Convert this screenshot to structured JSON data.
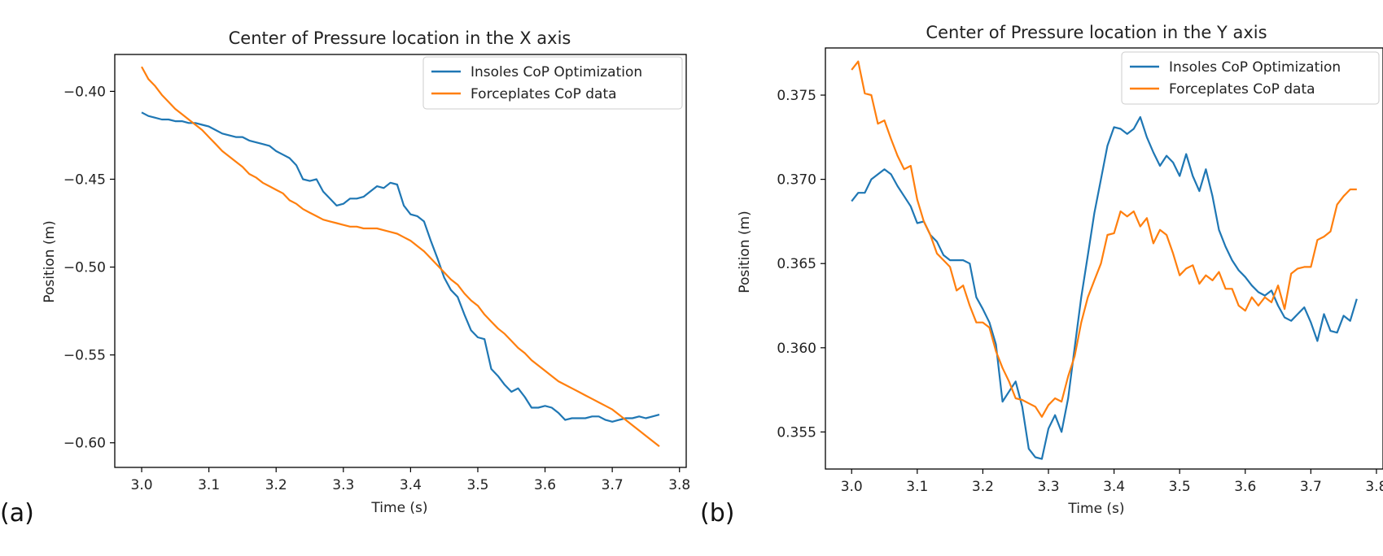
{
  "colors": {
    "insoles": "#1f77b4",
    "forceplates": "#ff7f0e"
  },
  "chart_data": [
    {
      "panel_label": "(a)",
      "type": "line",
      "title": "Center of Pressure location in the X axis",
      "xlabel": "Time (s)",
      "ylabel": "Position (m)",
      "xlim": [
        2.96,
        3.81
      ],
      "ylim": [
        -0.614,
        -0.379
      ],
      "xticks": [
        3.0,
        3.1,
        3.2,
        3.3,
        3.4,
        3.5,
        3.6,
        3.7,
        3.8
      ],
      "xtick_labels": [
        "3.0",
        "3.1",
        "3.2",
        "3.3",
        "3.4",
        "3.5",
        "3.6",
        "3.7",
        "3.8"
      ],
      "yticks": [
        -0.4,
        -0.45,
        -0.5,
        -0.55,
        -0.6
      ],
      "ytick_labels": [
        "−0.40",
        "−0.45",
        "−0.50",
        "−0.55",
        "−0.60"
      ],
      "legend": {
        "placement": "top-right",
        "entries": [
          "Insoles CoP Optimization",
          "Forceplates CoP data"
        ]
      },
      "grid": false,
      "series": [
        {
          "name": "Insoles CoP Optimization",
          "x": [
            3.0,
            3.01,
            3.02,
            3.03,
            3.04,
            3.05,
            3.06,
            3.07,
            3.08,
            3.09,
            3.1,
            3.11,
            3.12,
            3.13,
            3.14,
            3.15,
            3.16,
            3.17,
            3.18,
            3.19,
            3.2,
            3.21,
            3.22,
            3.23,
            3.24,
            3.25,
            3.26,
            3.27,
            3.28,
            3.29,
            3.3,
            3.31,
            3.32,
            3.33,
            3.34,
            3.35,
            3.36,
            3.37,
            3.38,
            3.39,
            3.4,
            3.41,
            3.42,
            3.43,
            3.44,
            3.45,
            3.46,
            3.47,
            3.48,
            3.49,
            3.5,
            3.51,
            3.52,
            3.53,
            3.54,
            3.55,
            3.56,
            3.57,
            3.58,
            3.59,
            3.6,
            3.61,
            3.62,
            3.63,
            3.64,
            3.65,
            3.66,
            3.67,
            3.68,
            3.69,
            3.7,
            3.71,
            3.72,
            3.73,
            3.74,
            3.75,
            3.76,
            3.77
          ],
          "y": [
            -0.412,
            -0.414,
            -0.415,
            -0.416,
            -0.416,
            -0.417,
            -0.417,
            -0.418,
            -0.418,
            -0.419,
            -0.42,
            -0.422,
            -0.424,
            -0.425,
            -0.426,
            -0.426,
            -0.428,
            -0.429,
            -0.43,
            -0.431,
            -0.434,
            -0.436,
            -0.438,
            -0.442,
            -0.45,
            -0.451,
            -0.45,
            -0.457,
            -0.461,
            -0.465,
            -0.464,
            -0.461,
            -0.461,
            -0.46,
            -0.457,
            -0.454,
            -0.455,
            -0.452,
            -0.453,
            -0.465,
            -0.47,
            -0.471,
            -0.474,
            -0.485,
            -0.495,
            -0.506,
            -0.513,
            -0.517,
            -0.527,
            -0.536,
            -0.54,
            -0.541,
            -0.558,
            -0.562,
            -0.567,
            -0.571,
            -0.569,
            -0.574,
            -0.58,
            -0.58,
            -0.579,
            -0.58,
            -0.583,
            -0.587,
            -0.586,
            -0.586,
            -0.586,
            -0.585,
            -0.585,
            -0.587,
            -0.588,
            -0.587,
            -0.586,
            -0.586,
            -0.585,
            -0.586,
            -0.585,
            -0.584
          ]
        },
        {
          "name": "Forceplates CoP data",
          "x": [
            3.0,
            3.01,
            3.02,
            3.03,
            3.04,
            3.05,
            3.06,
            3.07,
            3.08,
            3.09,
            3.1,
            3.11,
            3.12,
            3.13,
            3.14,
            3.15,
            3.16,
            3.17,
            3.18,
            3.19,
            3.2,
            3.21,
            3.22,
            3.23,
            3.24,
            3.25,
            3.26,
            3.27,
            3.28,
            3.29,
            3.3,
            3.31,
            3.32,
            3.33,
            3.34,
            3.35,
            3.36,
            3.37,
            3.38,
            3.39,
            3.4,
            3.41,
            3.42,
            3.43,
            3.44,
            3.45,
            3.46,
            3.47,
            3.48,
            3.49,
            3.5,
            3.51,
            3.52,
            3.53,
            3.54,
            3.55,
            3.56,
            3.57,
            3.58,
            3.59,
            3.6,
            3.61,
            3.62,
            3.63,
            3.64,
            3.65,
            3.66,
            3.67,
            3.68,
            3.69,
            3.7,
            3.71,
            3.72,
            3.73,
            3.74,
            3.75,
            3.76,
            3.77
          ],
          "y": [
            -0.386,
            -0.393,
            -0.397,
            -0.402,
            -0.406,
            -0.41,
            -0.413,
            -0.416,
            -0.419,
            -0.422,
            -0.426,
            -0.43,
            -0.434,
            -0.437,
            -0.44,
            -0.443,
            -0.447,
            -0.449,
            -0.452,
            -0.454,
            -0.456,
            -0.458,
            -0.462,
            -0.464,
            -0.467,
            -0.469,
            -0.471,
            -0.473,
            -0.474,
            -0.475,
            -0.476,
            -0.477,
            -0.477,
            -0.478,
            -0.478,
            -0.478,
            -0.479,
            -0.48,
            -0.481,
            -0.483,
            -0.485,
            -0.488,
            -0.491,
            -0.495,
            -0.499,
            -0.503,
            -0.507,
            -0.51,
            -0.515,
            -0.519,
            -0.522,
            -0.527,
            -0.531,
            -0.535,
            -0.538,
            -0.542,
            -0.546,
            -0.549,
            -0.553,
            -0.556,
            -0.559,
            -0.562,
            -0.565,
            -0.567,
            -0.569,
            -0.571,
            -0.573,
            -0.575,
            -0.577,
            -0.579,
            -0.581,
            -0.584,
            -0.587,
            -0.59,
            -0.593,
            -0.596,
            -0.599,
            -0.602
          ]
        }
      ]
    },
    {
      "panel_label": "(b)",
      "type": "line",
      "title": "Center of Pressure location in the Y axis",
      "xlabel": "Time (s)",
      "ylabel": "Position (m)",
      "xlim": [
        2.96,
        3.81
      ],
      "ylim": [
        0.3528,
        0.3778
      ],
      "xticks": [
        3.0,
        3.1,
        3.2,
        3.3,
        3.4,
        3.5,
        3.6,
        3.7,
        3.8
      ],
      "xtick_labels": [
        "3.0",
        "3.1",
        "3.2",
        "3.3",
        "3.4",
        "3.5",
        "3.6",
        "3.7",
        "3.8"
      ],
      "yticks": [
        0.355,
        0.36,
        0.365,
        0.37,
        0.375
      ],
      "ytick_labels": [
        "0.355",
        "0.360",
        "0.365",
        "0.370",
        "0.375"
      ],
      "legend": {
        "placement": "top-right",
        "entries": [
          "Insoles CoP Optimization",
          "Forceplates CoP data"
        ]
      },
      "grid": false,
      "series": [
        {
          "name": "Insoles CoP Optimization",
          "x": [
            3.0,
            3.01,
            3.02,
            3.03,
            3.04,
            3.05,
            3.06,
            3.07,
            3.08,
            3.09,
            3.1,
            3.11,
            3.12,
            3.13,
            3.14,
            3.15,
            3.16,
            3.17,
            3.18,
            3.19,
            3.2,
            3.21,
            3.22,
            3.23,
            3.24,
            3.25,
            3.26,
            3.27,
            3.28,
            3.29,
            3.3,
            3.31,
            3.32,
            3.33,
            3.34,
            3.35,
            3.36,
            3.37,
            3.38,
            3.39,
            3.4,
            3.41,
            3.42,
            3.43,
            3.44,
            3.45,
            3.46,
            3.47,
            3.48,
            3.49,
            3.5,
            3.51,
            3.52,
            3.53,
            3.54,
            3.55,
            3.56,
            3.57,
            3.58,
            3.59,
            3.6,
            3.61,
            3.62,
            3.63,
            3.64,
            3.65,
            3.66,
            3.67,
            3.68,
            3.69,
            3.7,
            3.71,
            3.72,
            3.73,
            3.74,
            3.75,
            3.76,
            3.77
          ],
          "y": [
            0.3687,
            0.3692,
            0.3692,
            0.37,
            0.3703,
            0.3706,
            0.3703,
            0.3696,
            0.369,
            0.3684,
            0.3674,
            0.3675,
            0.3667,
            0.3663,
            0.3655,
            0.3652,
            0.3652,
            0.3652,
            0.365,
            0.363,
            0.3623,
            0.3615,
            0.3602,
            0.3568,
            0.3574,
            0.358,
            0.3565,
            0.354,
            0.3535,
            0.3534,
            0.3552,
            0.356,
            0.355,
            0.357,
            0.36,
            0.363,
            0.3655,
            0.368,
            0.37,
            0.372,
            0.3731,
            0.373,
            0.3727,
            0.373,
            0.3737,
            0.3725,
            0.3716,
            0.3708,
            0.3714,
            0.371,
            0.3702,
            0.3715,
            0.3702,
            0.3693,
            0.3706,
            0.369,
            0.367,
            0.366,
            0.3652,
            0.3646,
            0.3642,
            0.3637,
            0.3633,
            0.3631,
            0.3634,
            0.3625,
            0.3618,
            0.3616,
            0.362,
            0.3624,
            0.3615,
            0.3604,
            0.362,
            0.361,
            0.3609,
            0.3619,
            0.3616,
            0.3629
          ]
        },
        {
          "name": "Forceplates CoP data",
          "x": [
            3.0,
            3.01,
            3.02,
            3.03,
            3.04,
            3.05,
            3.06,
            3.07,
            3.08,
            3.09,
            3.1,
            3.11,
            3.12,
            3.13,
            3.14,
            3.15,
            3.16,
            3.17,
            3.18,
            3.19,
            3.2,
            3.21,
            3.22,
            3.23,
            3.24,
            3.25,
            3.26,
            3.27,
            3.28,
            3.29,
            3.3,
            3.31,
            3.32,
            3.33,
            3.34,
            3.35,
            3.36,
            3.37,
            3.38,
            3.39,
            3.4,
            3.41,
            3.42,
            3.43,
            3.44,
            3.45,
            3.46,
            3.47,
            3.48,
            3.49,
            3.5,
            3.51,
            3.52,
            3.53,
            3.54,
            3.55,
            3.56,
            3.57,
            3.58,
            3.59,
            3.6,
            3.61,
            3.62,
            3.63,
            3.64,
            3.65,
            3.66,
            3.67,
            3.68,
            3.69,
            3.7,
            3.71,
            3.72,
            3.73,
            3.74,
            3.75,
            3.76,
            3.77
          ],
          "y": [
            0.3765,
            0.377,
            0.3751,
            0.375,
            0.3733,
            0.3735,
            0.3724,
            0.3714,
            0.3706,
            0.3708,
            0.3688,
            0.3675,
            0.3667,
            0.3656,
            0.3652,
            0.3648,
            0.3634,
            0.3637,
            0.3625,
            0.3615,
            0.3615,
            0.3612,
            0.3598,
            0.3588,
            0.358,
            0.357,
            0.3569,
            0.3567,
            0.3565,
            0.3559,
            0.3566,
            0.357,
            0.3568,
            0.3583,
            0.3595,
            0.3615,
            0.363,
            0.364,
            0.365,
            0.3667,
            0.3668,
            0.3681,
            0.3678,
            0.3681,
            0.3672,
            0.3677,
            0.3662,
            0.367,
            0.3667,
            0.3656,
            0.3643,
            0.3647,
            0.3649,
            0.3638,
            0.3643,
            0.364,
            0.3645,
            0.3635,
            0.3635,
            0.3625,
            0.3622,
            0.363,
            0.3625,
            0.363,
            0.3627,
            0.3637,
            0.3623,
            0.3644,
            0.3647,
            0.3648,
            0.3648,
            0.3664,
            0.3666,
            0.3669,
            0.3685,
            0.369,
            0.3694,
            0.3694
          ]
        }
      ]
    }
  ]
}
